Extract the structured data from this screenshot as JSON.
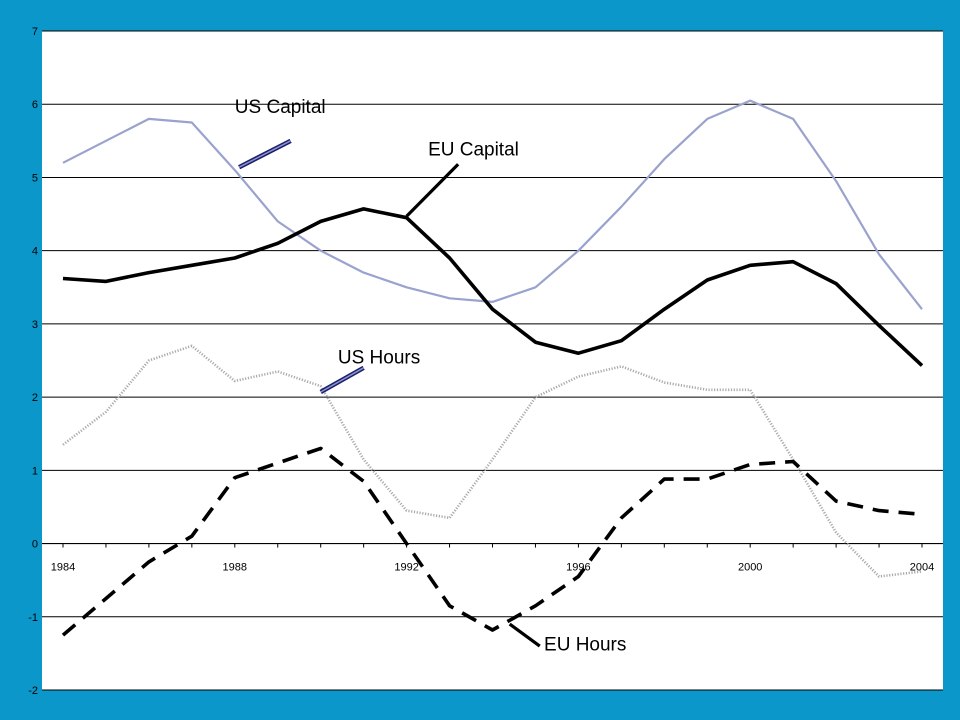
{
  "chart_data": {
    "type": "line",
    "title": "",
    "xlabel": "",
    "ylabel": "",
    "x": [
      1984,
      1985,
      1986,
      1987,
      1988,
      1989,
      1990,
      1991,
      1992,
      1993,
      1994,
      1995,
      1996,
      1997,
      1998,
      1999,
      2000,
      2001,
      2002,
      2003,
      2004
    ],
    "xticks": [
      1984,
      1988,
      1992,
      1996,
      2000,
      2004
    ],
    "xtick_labels": [
      "1984",
      "1988",
      "1992",
      "1996",
      "2000",
      "2004"
    ],
    "ylim": [
      -2,
      7
    ],
    "yticks": [
      -2,
      -1,
      0,
      1,
      2,
      3,
      4,
      5,
      6,
      7
    ],
    "ytick_labels": [
      "-2",
      "-1",
      "0",
      "1",
      "2",
      "3",
      "4",
      "5",
      "6",
      "7"
    ],
    "grid": "horizontal",
    "legend": "none",
    "series": [
      {
        "name": "US Capital",
        "color": "#9aa2ce",
        "style": "solid-thin",
        "values": [
          5.2,
          5.5,
          5.8,
          5.75,
          5.1,
          4.4,
          4.0,
          3.7,
          3.5,
          3.35,
          3.3,
          3.5,
          4.0,
          4.6,
          5.25,
          5.8,
          6.05,
          5.8,
          4.95,
          3.95,
          3.2
        ]
      },
      {
        "name": "EU Capital",
        "color": "#000000",
        "style": "solid-thick",
        "values": [
          3.62,
          3.58,
          3.7,
          3.8,
          3.9,
          4.1,
          4.4,
          4.57,
          4.45,
          3.9,
          3.2,
          2.75,
          2.6,
          2.77,
          3.2,
          3.6,
          3.8,
          3.85,
          3.55,
          2.98,
          2.43
        ]
      },
      {
        "name": "US Hours",
        "color": "#aaaaaa",
        "style": "dotted",
        "values": [
          1.35,
          1.8,
          2.5,
          2.7,
          2.22,
          2.35,
          2.15,
          1.15,
          0.45,
          0.35,
          1.15,
          2.0,
          2.28,
          2.42,
          2.2,
          2.1,
          2.1,
          1.15,
          0.15,
          -0.45,
          -0.38
        ]
      },
      {
        "name": "EU Hours",
        "color": "#000000",
        "style": "dashed",
        "values": [
          -1.25,
          -0.75,
          -0.25,
          0.1,
          0.9,
          1.1,
          1.3,
          0.85,
          0.0,
          -0.85,
          -1.18,
          -0.85,
          -0.45,
          0.35,
          0.88,
          0.88,
          1.08,
          1.12,
          0.58,
          0.45,
          0.4
        ]
      }
    ],
    "annotations": [
      {
        "text": "US Capital",
        "series": 0,
        "leader_from": [
          1988.1,
          5.14
        ],
        "leader_to": [
          1989.3,
          5.5
        ],
        "label_at": [
          1988.0,
          5.88
        ]
      },
      {
        "text": "EU Capital",
        "series": 1,
        "leader_from": [
          1992.0,
          4.47
        ],
        "leader_to": [
          1993.2,
          5.18
        ],
        "label_at": [
          1992.5,
          5.3
        ]
      },
      {
        "text": "US Hours",
        "series": 2,
        "leader_from": [
          1990.0,
          2.07
        ],
        "leader_to": [
          1991.0,
          2.4
        ],
        "label_at": [
          1990.4,
          2.46
        ]
      },
      {
        "text": "EU Hours",
        "series": 3,
        "leader_from": [
          1994.4,
          -1.1
        ],
        "leader_to": [
          1995.1,
          -1.4
        ],
        "label_at": [
          1995.2,
          -1.46
        ]
      }
    ]
  }
}
